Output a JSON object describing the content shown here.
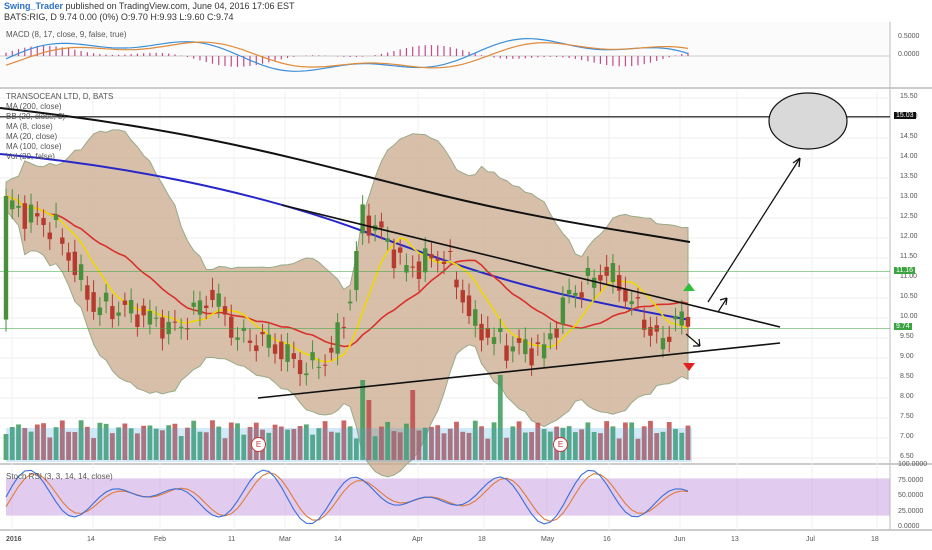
{
  "header": {
    "user": "Swing_Trader",
    "published_text": "published on TradingView.com, June 04, 2016 17:06 EST",
    "symbol_line": "BATS:RIG, D",
    "ohlc_line": "9.74 0.00 (0%) O:9.70 H:9.93 L:9.60 C:9.74"
  },
  "panes": {
    "macd_label": "MACD (8, 17, close, 9, false, true)",
    "main_labels": [
      "TRANSOCEAN LTD, D, BATS",
      "MA (200, close)",
      "BB (20, close, 3)",
      "MA (8, close)",
      "MA (20, close)",
      "MA (100, close)",
      "Vol (20, false)"
    ],
    "stoch_label": "Stoch RSI (3, 3, 14, 14, close)"
  },
  "colors": {
    "candle_up": "#4a8f3c",
    "candle_down": "#b63a2e",
    "bb_fill": "#c9a98c",
    "ma8": "#f0d800",
    "ma20": "#d9312a",
    "ma100": "#2727c9",
    "ma200": "#111111",
    "stoch_k": "#3a6fd8",
    "stoch_d": "#e07b3a",
    "stoch_band": "#c9a0e0"
  },
  "chart_data": {
    "type": "candlestick",
    "symbol": "BATS:RIG",
    "price_axis_ticks": [
      "15.50",
      "15.00",
      "14.50",
      "14.00",
      "13.50",
      "13.00",
      "12.50",
      "12.00",
      "11.50",
      "11.00",
      "10.50",
      "10.00",
      "9.50",
      "9.00",
      "8.50",
      "8.00",
      "7.50",
      "7.00",
      "6.50"
    ],
    "price_range": [
      6.4,
      15.7
    ],
    "time_axis_labels": [
      "2016",
      "14",
      "Feb",
      "11",
      "Mar",
      "14",
      "Apr",
      "18",
      "May",
      "16",
      "Jun",
      "13",
      "Jul",
      "18"
    ],
    "price_tags": [
      {
        "label": "15.03",
        "value": 15.03,
        "color": "#111111"
      },
      {
        "label": "11.16",
        "value": 11.16,
        "color": "#3aa540"
      },
      {
        "label": "9.74",
        "value": 9.74,
        "color": "#3aa540"
      }
    ],
    "horizontal_line": 15.03,
    "macd_axis_ticks": [
      "0.5000",
      "0.0000"
    ],
    "stoch_axis_ticks": [
      "100.0000",
      "75.0000",
      "50.0000",
      "25.0000",
      "0.0000"
    ],
    "events": [
      "E",
      "E"
    ]
  }
}
